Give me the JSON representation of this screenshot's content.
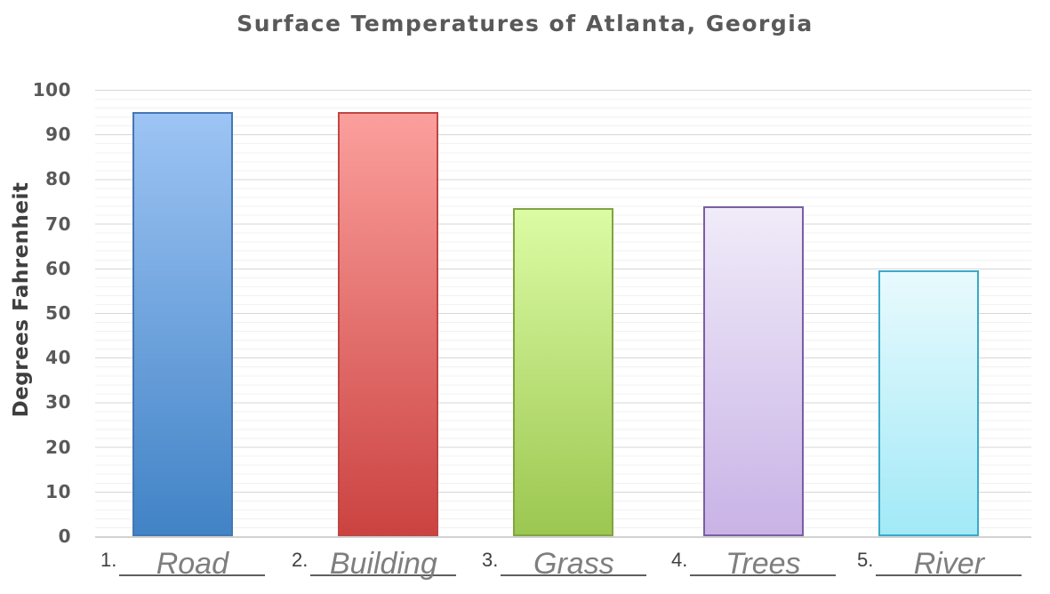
{
  "chart_data": {
    "type": "bar",
    "title": "Surface Temperatures of Atlanta, Georgia",
    "xlabel": "",
    "ylabel": "Degrees Fahrenheit",
    "categories": [
      "Road",
      "Building",
      "Grass",
      "Trees",
      "River"
    ],
    "values": [
      95,
      95,
      73.5,
      74,
      59.5
    ],
    "ylim": [
      0,
      100
    ],
    "yticks": [
      0,
      10,
      20,
      30,
      40,
      50,
      60,
      70,
      80,
      90,
      100
    ],
    "minor_gridline_step": 2,
    "grid": true,
    "legend_position": "none",
    "bar_colors": [
      {
        "top": "#9dc4f4",
        "bottom": "#4183c6",
        "border": "#4577b4"
      },
      {
        "top": "#fb9f9c",
        "bottom": "#cb4341",
        "border": "#bf4744"
      },
      {
        "top": "#dcfba4",
        "bottom": "#9cc751",
        "border": "#82a443"
      },
      {
        "top": "#f0ebf9",
        "bottom": "#c9b3e6",
        "border": "#7a5ea5"
      },
      {
        "top": "#e8fafd",
        "bottom": "#a2e9f7",
        "border": "#3aa9c9"
      }
    ]
  },
  "y_axis": {
    "label": "Degrees Fahrenheit",
    "tick_labels_top_to_bottom": [
      "100",
      "90",
      "80",
      "70",
      "60",
      "50",
      "40",
      "30",
      "20",
      "10",
      "0"
    ]
  },
  "x_axis": {
    "items": [
      {
        "number": "1.",
        "answer": "Road"
      },
      {
        "number": "2.",
        "answer": "Building"
      },
      {
        "number": "3.",
        "answer": "Grass"
      },
      {
        "number": "4.",
        "answer": "Trees"
      },
      {
        "number": "5.",
        "answer": "River"
      }
    ]
  }
}
